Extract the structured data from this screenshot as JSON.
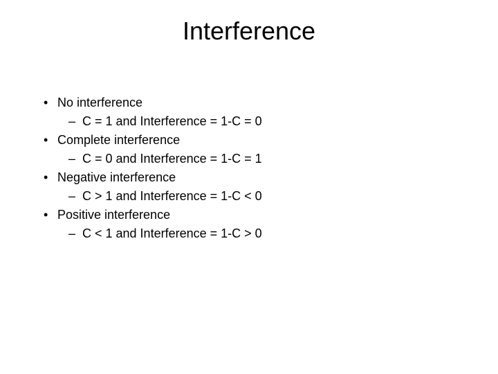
{
  "slide": {
    "title": "Interference",
    "title_fontsize": 36,
    "body_fontsize": 18,
    "background_color": "#ffffff",
    "text_color": "#000000",
    "bullets": [
      {
        "level": 1,
        "text": "No interference"
      },
      {
        "level": 2,
        "text": "C = 1 and Interference = 1-C = 0"
      },
      {
        "level": 1,
        "text": "Complete interference"
      },
      {
        "level": 2,
        "text": "C = 0 and Interference = 1-C = 1"
      },
      {
        "level": 1,
        "text": "Negative interference"
      },
      {
        "level": 2,
        "text": "C > 1 and Interference = 1-C < 0"
      },
      {
        "level": 1,
        "text": "Positive interference"
      },
      {
        "level": 2,
        "text": "C < 1 and Interference = 1-C > 0"
      }
    ]
  }
}
